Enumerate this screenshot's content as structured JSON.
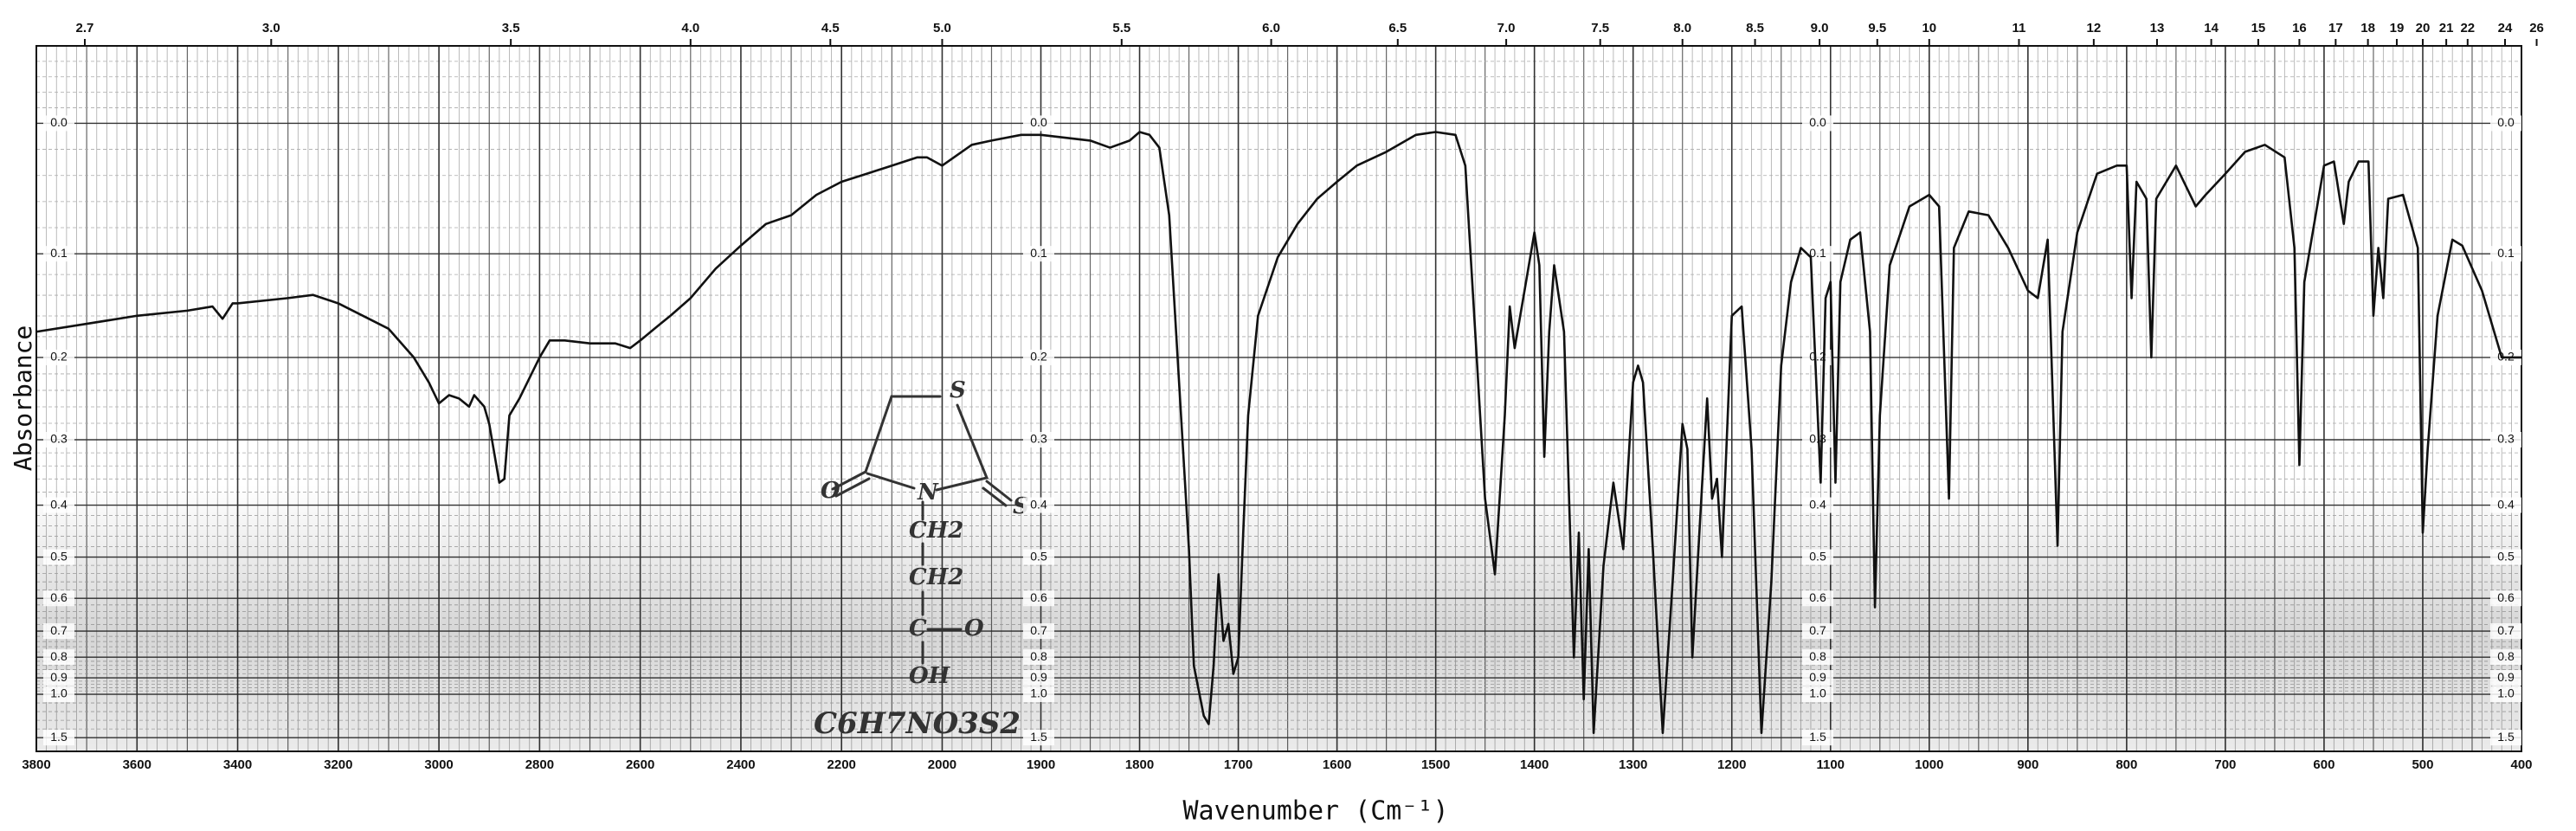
{
  "chart_data": {
    "type": "line",
    "x_label": "Wavenumber (Cm⁻¹)",
    "y_label": "Absorbance",
    "yscale": "transmittance",
    "color": "#111111",
    "grid": true,
    "xlim": [
      3800,
      400
    ],
    "ylim": [
      -0.05,
      2
    ],
    "xticks": [
      3800,
      3600,
      3400,
      3200,
      3000,
      2800,
      2600,
      2400,
      2200,
      2000,
      1900,
      1800,
      1700,
      1600,
      1500,
      1400,
      1300,
      1200,
      1100,
      1000,
      900,
      800,
      700,
      600,
      500,
      400
    ],
    "x2ticks": [
      2.7,
      {
        "value": 3,
        "label": "3.0"
      },
      3.5,
      {
        "value": 4,
        "label": "4.0"
      },
      4.5,
      {
        "value": 5,
        "label": "5.0"
      },
      5.5,
      {
        "value": 6,
        "label": "6.0"
      },
      6.5,
      {
        "value": 7,
        "label": "7.0"
      },
      7.5,
      {
        "value": 8,
        "label": "8.0"
      },
      8.5,
      {
        "value": 9,
        "label": "9.0"
      },
      9.5,
      10,
      11,
      12,
      13,
      14,
      15,
      16,
      17,
      18,
      19,
      20,
      21,
      22,
      24,
      26
    ],
    "yticks": [
      {
        "value": 0,
        "label": "0.0"
      },
      0.1,
      0.2,
      0.3,
      0.4,
      0.5,
      0.6,
      0.7,
      0.8,
      0.9,
      {
        "value": 1,
        "label": "1.0"
      },
      1.5
    ],
    "x": [
      3800,
      3700,
      3600,
      3500,
      3450,
      3430,
      3410,
      3400,
      3300,
      3250,
      3200,
      3100,
      3050,
      3020,
      3000,
      2980,
      2960,
      2940,
      2930,
      2910,
      2900,
      2880,
      2870,
      2860,
      2840,
      2800,
      2780,
      2750,
      2700,
      2650,
      2620,
      2600,
      2560,
      2540,
      2500,
      2450,
      2400,
      2350,
      2300,
      2250,
      2200,
      2150,
      2100,
      2050,
      2030,
      2000,
      1970,
      1950,
      1920,
      1900,
      1850,
      1830,
      1810,
      1800,
      1790,
      1780,
      1770,
      1760,
      1750,
      1745,
      1735,
      1730,
      1725,
      1720,
      1715,
      1710,
      1705,
      1700,
      1695,
      1690,
      1680,
      1660,
      1640,
      1620,
      1600,
      1580,
      1550,
      1520,
      1500,
      1480,
      1470,
      1460,
      1450,
      1440,
      1430,
      1425,
      1420,
      1410,
      1400,
      1395,
      1390,
      1385,
      1380,
      1370,
      1360,
      1355,
      1350,
      1345,
      1340,
      1330,
      1320,
      1310,
      1300,
      1295,
      1290,
      1280,
      1270,
      1260,
      1250,
      1245,
      1240,
      1230,
      1225,
      1220,
      1215,
      1210,
      1200,
      1190,
      1180,
      1170,
      1160,
      1150,
      1140,
      1130,
      1120,
      1110,
      1105,
      1100,
      1095,
      1090,
      1080,
      1070,
      1060,
      1055,
      1050,
      1040,
      1020,
      1000,
      990,
      980,
      975,
      960,
      940,
      920,
      900,
      890,
      880,
      870,
      865,
      850,
      830,
      810,
      800,
      795,
      790,
      780,
      775,
      770,
      750,
      730,
      720,
      700,
      680,
      660,
      640,
      630,
      625,
      620,
      600,
      590,
      580,
      575,
      565,
      555,
      550,
      545,
      540,
      535,
      520,
      505,
      500,
      495,
      485,
      470,
      460,
      440,
      420,
      400
    ],
    "values": [
      0.173,
      0.165,
      0.157,
      0.152,
      0.148,
      0.16,
      0.145,
      0.145,
      0.14,
      0.137,
      0.145,
      0.17,
      0.2,
      0.228,
      0.253,
      0.243,
      0.247,
      0.257,
      0.243,
      0.257,
      0.279,
      0.363,
      0.357,
      0.268,
      0.247,
      0.2,
      0.182,
      0.182,
      0.185,
      0.185,
      0.19,
      0.182,
      0.165,
      0.157,
      0.14,
      0.113,
      0.093,
      0.075,
      0.068,
      0.052,
      0.042,
      0.036,
      0.03,
      0.024,
      0.024,
      0.03,
      0.015,
      0.012,
      0.008,
      0.008,
      0.012,
      0.017,
      0.012,
      0.006,
      0.008,
      0.017,
      0.068,
      0.228,
      0.483,
      0.839,
      1.18,
      1.276,
      0.839,
      0.539,
      0.735,
      0.676,
      0.879,
      0.801,
      0.45,
      0.268,
      0.157,
      0.103,
      0.075,
      0.055,
      0.042,
      0.03,
      0.02,
      0.008,
      0.006,
      0.008,
      0.03,
      0.173,
      0.389,
      0.539,
      0.268,
      0.148,
      0.19,
      0.133,
      0.082,
      0.11,
      0.324,
      0.173,
      0.11,
      0.173,
      0.801,
      0.45,
      1.036,
      0.483,
      1.409,
      0.519,
      0.363,
      0.483,
      0.228,
      0.209,
      0.228,
      0.483,
      1.409,
      0.559,
      0.279,
      0.313,
      0.801,
      0.363,
      0.247,
      0.389,
      0.357,
      0.5,
      0.157,
      0.148,
      0.313,
      1.409,
      0.559,
      0.209,
      0.125,
      0.095,
      0.103,
      0.363,
      0.14,
      0.125,
      0.363,
      0.125,
      0.088,
      0.082,
      0.173,
      0.625,
      0.268,
      0.11,
      0.061,
      0.052,
      0.061,
      0.389,
      0.095,
      0.065,
      0.068,
      0.095,
      0.133,
      0.14,
      0.088,
      0.476,
      0.173,
      0.082,
      0.036,
      0.03,
      0.03,
      0.14,
      0.042,
      0.055,
      0.2,
      0.055,
      0.03,
      0.061,
      0.052,
      0.036,
      0.02,
      0.015,
      0.024,
      0.095,
      0.336,
      0.125,
      0.03,
      0.027,
      0.075,
      0.042,
      0.027,
      0.027,
      0.157,
      0.095,
      0.14,
      0.055,
      0.052,
      0.095,
      0.45,
      0.313,
      0.157,
      0.088,
      0.093,
      0.133,
      0.2,
      0.2
    ],
    "annotations": [
      "S",
      "O",
      "N",
      "S",
      "CH2",
      "CH2",
      "C",
      "O",
      "OH",
      "C6H7NO3S2"
    ]
  }
}
